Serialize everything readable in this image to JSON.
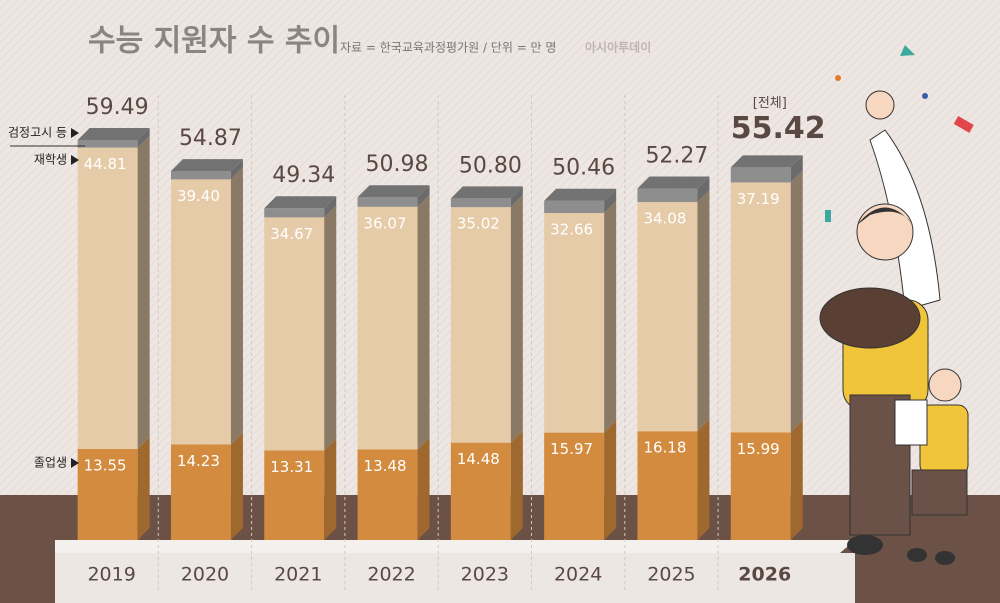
{
  "chart_data": {
    "type": "bar",
    "stacked": true,
    "title": "수능 지원자 수 추이",
    "source": "자료 = 한국교육과정평가원 / 단위 = 만 명",
    "publisher": "아시아투데이",
    "categories": [
      "2019",
      "2020",
      "2021",
      "2022",
      "2023",
      "2024",
      "2025",
      "2026"
    ],
    "series": [
      {
        "name": "졸업생",
        "color": "#d38b3f",
        "values": [
          13.55,
          14.23,
          13.31,
          13.48,
          14.48,
          15.97,
          16.18,
          15.99
        ]
      },
      {
        "name": "재학생",
        "color": "#e6cba8",
        "values": [
          44.81,
          39.4,
          34.67,
          36.07,
          35.02,
          32.66,
          34.08,
          37.19
        ],
        "value_labels": [
          "44.81",
          "39.40",
          "34.67",
          "36.07",
          "35.02",
          "32.66",
          "34.08",
          "37.19"
        ]
      },
      {
        "name": "검정고시 등",
        "color": "#8e8e8e",
        "values": [
          1.13,
          1.24,
          1.36,
          1.43,
          1.3,
          1.83,
          2.01,
          2.24
        ]
      }
    ],
    "totals_label": "[전체]",
    "totals": [
      59.49,
      54.87,
      49.34,
      50.98,
      50.8,
      50.46,
      52.27,
      55.42
    ],
    "totals_value_labels": [
      "59.49",
      "54.87",
      "49.34",
      "50.98",
      "50.80",
      "50.46",
      "52.27",
      "55.42"
    ]
  }
}
